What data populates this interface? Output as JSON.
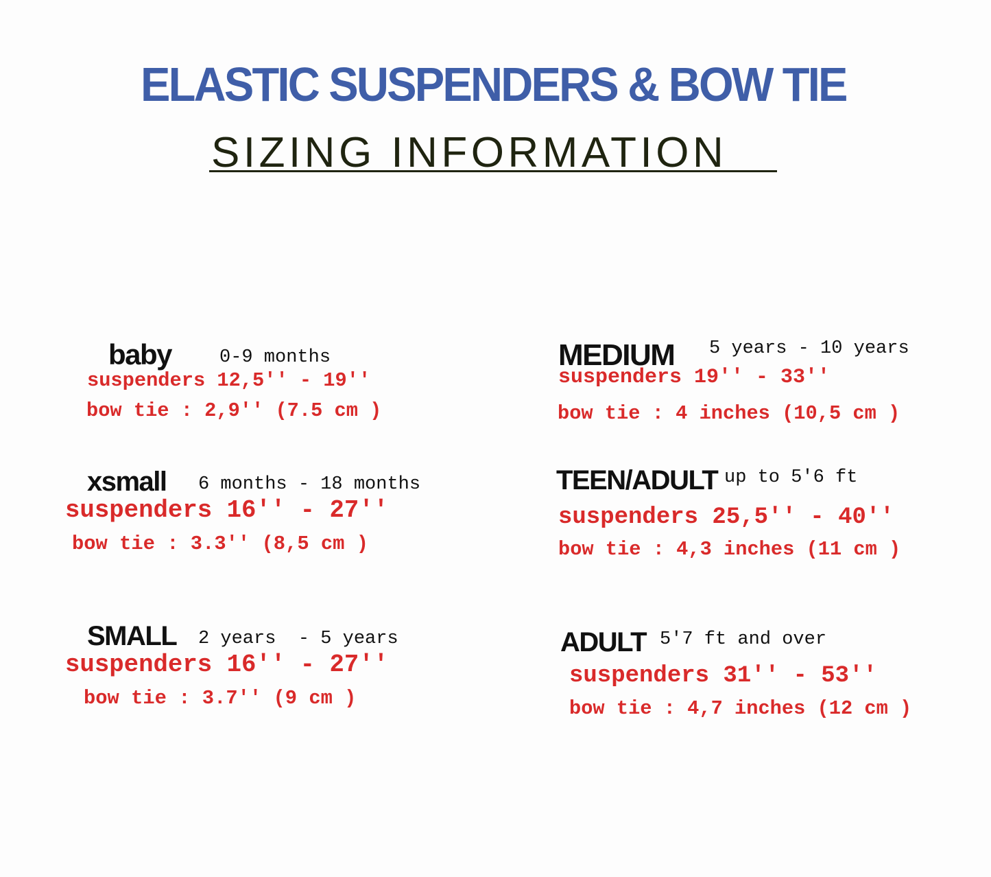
{
  "title": "ELASTIC SUSPENDERS & BOW TIE",
  "subtitle": "SIZING INFORMATION",
  "colors": {
    "title": "#3f5ea8",
    "subtitle": "#1f2410",
    "measurements": "#d92a2a",
    "labels": "#111111"
  },
  "sizes": [
    {
      "name": "baby",
      "age": "0-9 months",
      "suspenders": "suspenders 12,5'' - 19''",
      "bow_tie": "bow tie : 2,9'' (7.5 cm )"
    },
    {
      "name": "xsmall",
      "age": "6 months - 18 months",
      "suspenders": "suspenders 16'' - 27''",
      "bow_tie": "bow tie : 3.3'' (8,5 cm )"
    },
    {
      "name": "SMALL",
      "age": "2 years  - 5 years",
      "suspenders": "suspenders 16'' - 27''",
      "bow_tie": "bow tie : 3.7'' (9 cm )"
    },
    {
      "name": "MEDIUM",
      "age": "5 years - 10 years",
      "suspenders": "suspenders 19'' - 33''",
      "bow_tie": "bow tie : 4 inches (10,5 cm )"
    },
    {
      "name": "TEEN/ADULT",
      "age": "up to 5'6 ft",
      "suspenders": "suspenders 25,5'' - 40''",
      "bow_tie": "bow tie : 4,3 inches (11 cm )"
    },
    {
      "name": "ADULT",
      "age": "5'7 ft and over",
      "suspenders": "suspenders 31'' - 53''",
      "bow_tie": "bow tie : 4,7 inches (12 cm )"
    }
  ]
}
